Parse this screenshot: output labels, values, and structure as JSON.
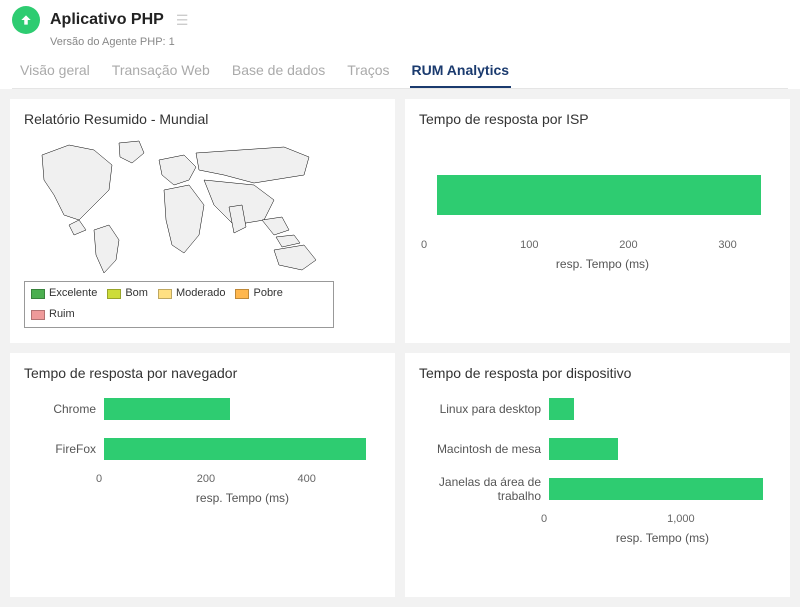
{
  "header": {
    "title": "Aplicativo PHP",
    "subtitle": "Versão do Agente PHP: 1"
  },
  "tabs": [
    {
      "label": "Visão geral",
      "active": false
    },
    {
      "label": "Transação Web",
      "active": false
    },
    {
      "label": "Base de dados",
      "active": false
    },
    {
      "label": "Traços",
      "active": false
    },
    {
      "label": "RUM Analytics",
      "active": true
    }
  ],
  "colors": {
    "bar": "#2ecc71",
    "panel_bg": "#ffffff",
    "page_bg": "#f2f2f2",
    "text": "#333333",
    "muted": "#888888"
  },
  "panels": {
    "world": {
      "title": "Relatório Resumido - Mundial",
      "legend": [
        {
          "label": "Excelente",
          "color": "#4caf50"
        },
        {
          "label": "Bom",
          "color": "#cddc39"
        },
        {
          "label": "Moderado",
          "color": "#ffe082"
        },
        {
          "label": "Pobre",
          "color": "#ffb74d"
        },
        {
          "label": "Ruim",
          "color": "#ef9a9a"
        }
      ],
      "map": {
        "fill": "#f0f0f0",
        "stroke": "#000000",
        "stroke_width": 0.5
      }
    },
    "isp": {
      "title": "Tempo de resposta por ISP",
      "type": "bar",
      "axis_label": "resp. Tempo (ms)",
      "xlim": [
        0,
        350
      ],
      "ticks": [
        0,
        100,
        200,
        300
      ],
      "bars": [
        {
          "label": "",
          "value": 335
        }
      ]
    },
    "browser": {
      "title": "Tempo de resposta por navegador",
      "type": "bar",
      "axis_label": "resp. Tempo (ms)",
      "xlim": [
        0,
        550
      ],
      "ticks": [
        0,
        200,
        400
      ],
      "label_width": 70,
      "bars": [
        {
          "label": "Chrome",
          "value": 250
        },
        {
          "label": "FireFox",
          "value": 520
        }
      ]
    },
    "device": {
      "title": "Tempo de resposta por dispositivo",
      "type": "bar",
      "axis_label": "resp. Tempo (ms)",
      "xlim": [
        0,
        1800
      ],
      "ticks": [
        0,
        1000
      ],
      "label_width": 120,
      "bars": [
        {
          "label": "Linux para desktop",
          "value": 200
        },
        {
          "label": "Macintosh de mesa",
          "value": 550
        },
        {
          "label": "Janelas da área de trabalho",
          "value": 1700
        }
      ]
    }
  }
}
